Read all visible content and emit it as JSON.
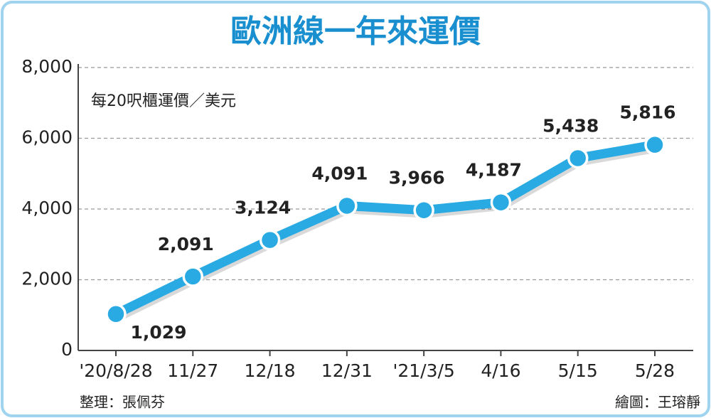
{
  "chart_data": {
    "type": "line",
    "title": "歐洲線一年來運價",
    "subtitle": "每20呎櫃運價／美元",
    "categories": [
      "'20/8/28",
      "11/27",
      "12/18",
      "12/31",
      "'21/3/5",
      "4/16",
      "5/15",
      "5/28"
    ],
    "values": [
      1029,
      2091,
      3124,
      4091,
      3966,
      4187,
      5438,
      5816
    ],
    "value_labels": [
      "1,029",
      "2,091",
      "3,124",
      "4,091",
      "3,966",
      "4,187",
      "5,438",
      "5,816"
    ],
    "color": "#29aae2",
    "ylim": [
      0,
      8000
    ],
    "yticks": [
      0,
      {
        "value": 2000,
        "label": "2,000"
      },
      {
        "value": 4000,
        "label": "4,000"
      },
      {
        "value": 6000,
        "label": "6,000"
      },
      {
        "value": 8000,
        "label": "8,000"
      }
    ],
    "grid": true,
    "source": "整理：張佩芬",
    "credit": "繪圖：王瑢靜"
  }
}
